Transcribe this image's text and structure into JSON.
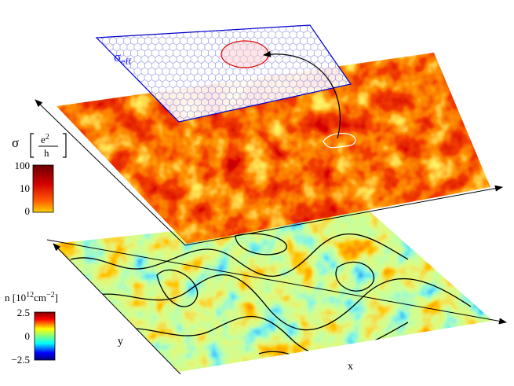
{
  "sigma_eff": {
    "symbol": "σ",
    "subscript": "eff"
  },
  "sigma_colorbar": {
    "symbol": "σ",
    "unit_top": "e",
    "unit_top_exp": "2",
    "unit_bottom": "h",
    "ticks": [
      "100",
      "10",
      "0"
    ]
  },
  "density_colorbar": {
    "label_start": "n [10",
    "label_exp": "12",
    "label_unit": "cm",
    "label_unit_exp": "−2",
    "label_end": "]",
    "ticks": [
      "2.5",
      "0",
      "−2.5"
    ]
  },
  "axes": {
    "y": "y",
    "x": "x"
  }
}
